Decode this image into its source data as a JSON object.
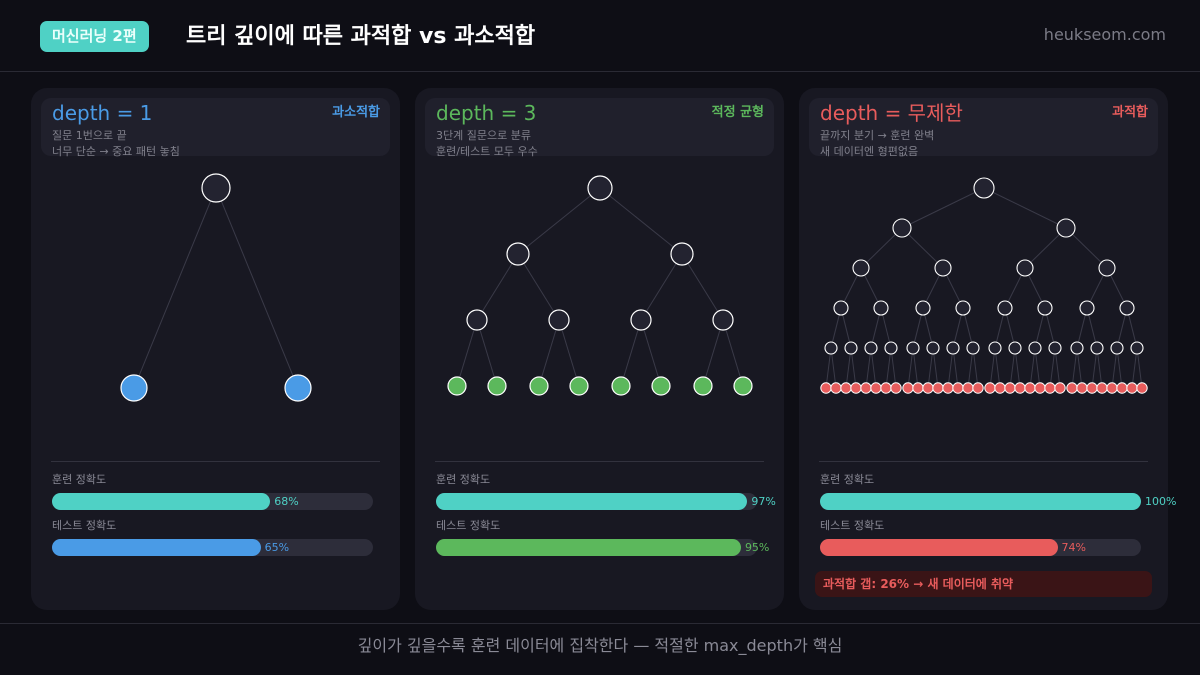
{
  "header": {
    "badge": "머신러닝 2편",
    "title": "트리 깊이에 따른 과적합 vs 과소적합",
    "site": "heukseom.com"
  },
  "colors": {
    "background": "#0e0e15",
    "card": "#181822",
    "teal": "#4fd1c5",
    "blue": "#4a9be6",
    "green": "#5cb85c",
    "red": "#e85c5c",
    "track": "#2d2d3a"
  },
  "cards": [
    {
      "title": "depth = 1",
      "tag": "과소적합",
      "accent": "#4a9be6",
      "desc": [
        "질문 1번으로 끝",
        "너무 단순 → 중요 패턴 놓침"
      ],
      "metrics": [
        {
          "label": "훈련 정확도",
          "value": 68,
          "display": "68%",
          "color": "#4fd1c5"
        },
        {
          "label": "테스트 정확도",
          "value": 65,
          "display": "65%",
          "color": "#4a9be6"
        }
      ]
    },
    {
      "title": "depth = 3",
      "tag": "적정 균형",
      "accent": "#5cb85c",
      "desc": [
        "3단계 질문으로 분류",
        "훈련/테스트 모두 우수"
      ],
      "metrics": [
        {
          "label": "훈련 정확도",
          "value": 97,
          "display": "97%",
          "color": "#4fd1c5"
        },
        {
          "label": "테스트 정확도",
          "value": 95,
          "display": "95%",
          "color": "#5cb85c"
        }
      ]
    },
    {
      "title": "depth = 무제한",
      "tag": "과적합",
      "accent": "#e85c5c",
      "desc": [
        "끝까지 분기 → 훈련 완벽",
        "새 데이터엔 형편없음"
      ],
      "metrics": [
        {
          "label": "훈련 정확도",
          "value": 100,
          "display": "100%",
          "color": "#4fd1c5"
        },
        {
          "label": "테스트 정확도",
          "value": 74,
          "display": "74%",
          "color": "#e85c5c"
        }
      ],
      "gap_note": "과적합 갭: 26%  →  새 데이터에 취약"
    }
  ],
  "footer": {
    "caption": "깊이가 깊을수록 훈련 데이터에 집착한다 — 적절한 max_depth가 핵심"
  }
}
